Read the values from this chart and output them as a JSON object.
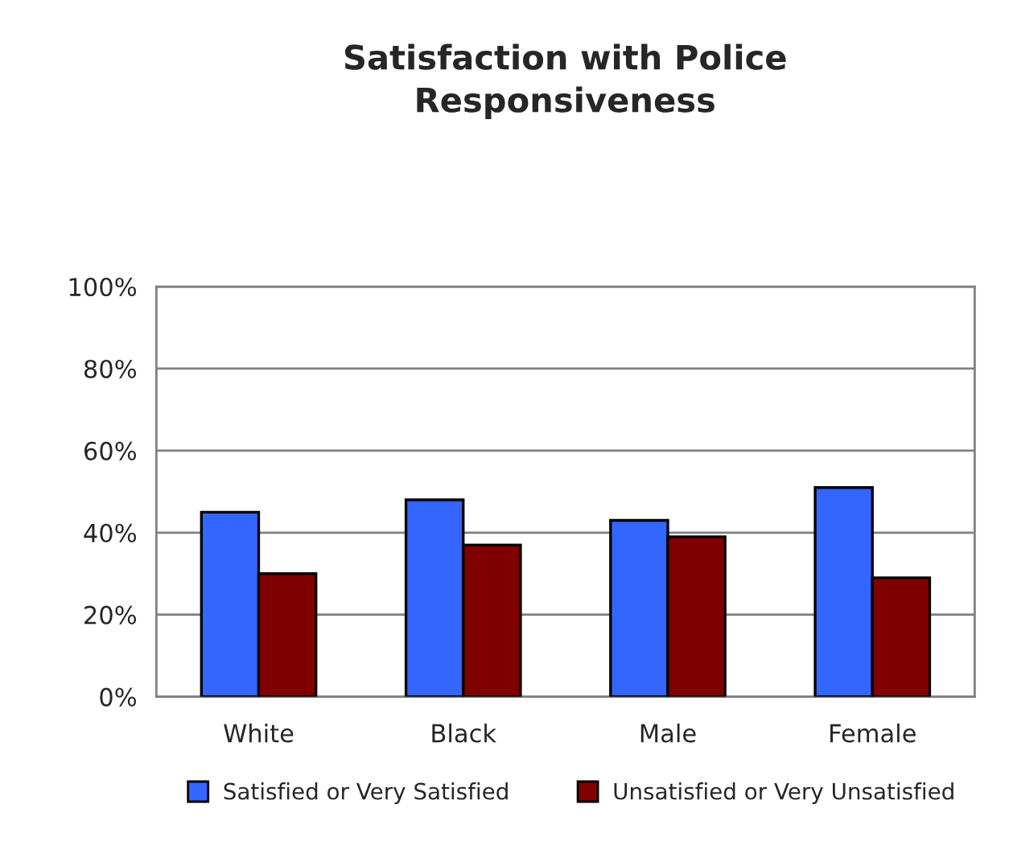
{
  "chart_data": {
    "type": "bar",
    "title": "Satisfaction with Police\nResponsiveness",
    "categories": [
      "White",
      "Black",
      "Male",
      "Female"
    ],
    "series": [
      {
        "name": "Satisfied or Very Satisfied",
        "color": "#3366ff",
        "values": [
          45,
          48,
          43,
          51
        ]
      },
      {
        "name": "Unsatisfied or Very Unsatisfied",
        "color": "#800000",
        "values": [
          30,
          37,
          39,
          29
        ]
      }
    ],
    "ylim": [
      0,
      100
    ],
    "yticks": [
      {
        "value": 0,
        "label": "0%"
      },
      {
        "value": 20,
        "label": "20%"
      },
      {
        "value": 40,
        "label": "40%"
      },
      {
        "value": 60,
        "label": "60%"
      },
      {
        "value": 80,
        "label": "80%"
      },
      {
        "value": 100,
        "label": "100%"
      }
    ],
    "grid": "y",
    "legend": "bottom"
  }
}
